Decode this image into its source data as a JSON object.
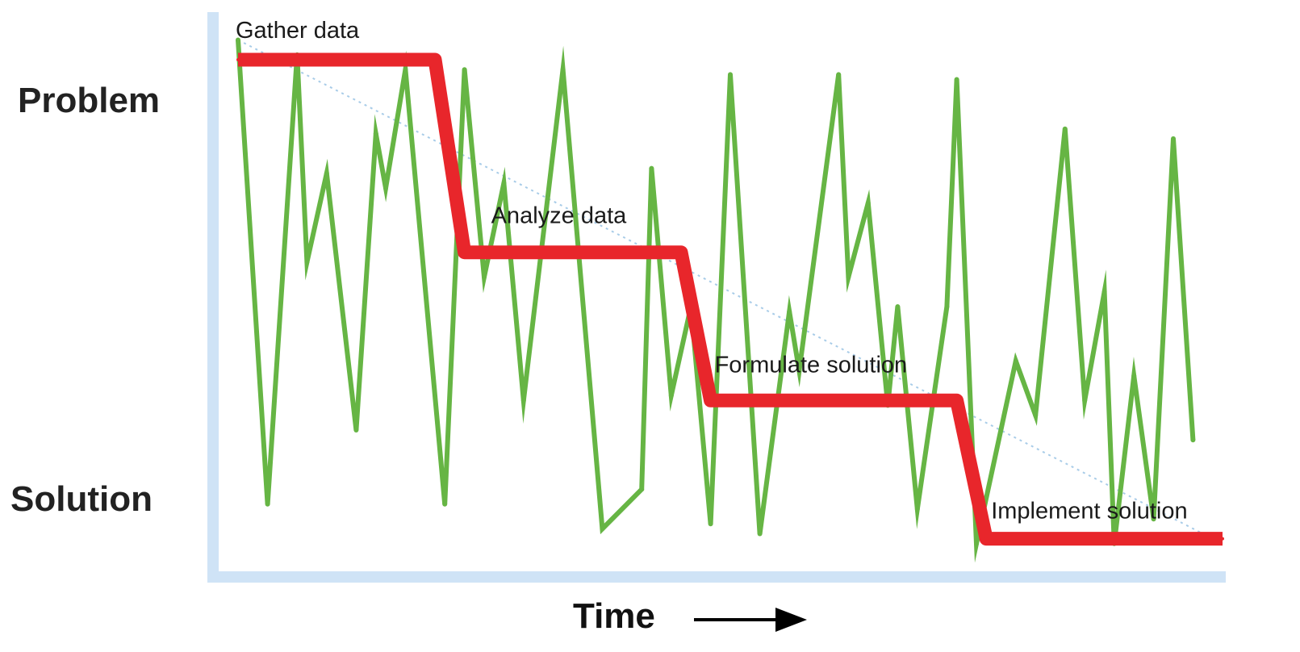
{
  "chart_data": {
    "type": "line",
    "ylabel_top": "Problem",
    "ylabel_bottom": "Solution",
    "xlabel": "Time",
    "xlabel_arrow": "arrow-right",
    "colors": {
      "stages": "#e8262b",
      "chaos": "#66b544",
      "axes": "#cfe3f6",
      "trend": "#a8cce8"
    },
    "stage_series": {
      "labels": [
        "Gather data",
        "Analyze data",
        "Formulate solution",
        "Implement solution"
      ],
      "x": [
        0,
        20,
        23,
        45,
        48,
        73,
        76,
        100
      ],
      "y": [
        100,
        100,
        61,
        61,
        31,
        31,
        3,
        3
      ]
    },
    "chaos_series": {
      "x": [
        0,
        3,
        6,
        7,
        9,
        12,
        14,
        15,
        17,
        21,
        23,
        25,
        27,
        29,
        33,
        37,
        41,
        42,
        44,
        46,
        48,
        50,
        53,
        56,
        57,
        61,
        62,
        64,
        66,
        67,
        69,
        72,
        73,
        75,
        79,
        81,
        84,
        86,
        88,
        89,
        91,
        93,
        95,
        97
      ],
      "y": [
        104,
        10,
        101,
        59,
        77,
        25,
        85,
        74,
        98,
        10,
        98,
        56,
        75,
        31,
        98,
        5,
        13,
        78,
        32,
        50,
        6,
        97,
        4,
        49,
        37,
        97,
        56,
        71,
        30,
        50,
        9,
        50,
        96,
        2,
        39,
        28,
        86,
        31,
        53,
        2,
        36,
        7,
        84,
        23
      ]
    },
    "trend_line": {
      "x": [
        0,
        100
      ],
      "y": [
        104,
        2
      ]
    },
    "xlim": [
      0,
      100
    ],
    "ylim": [
      0,
      100
    ],
    "grid": false,
    "legend": "none"
  }
}
